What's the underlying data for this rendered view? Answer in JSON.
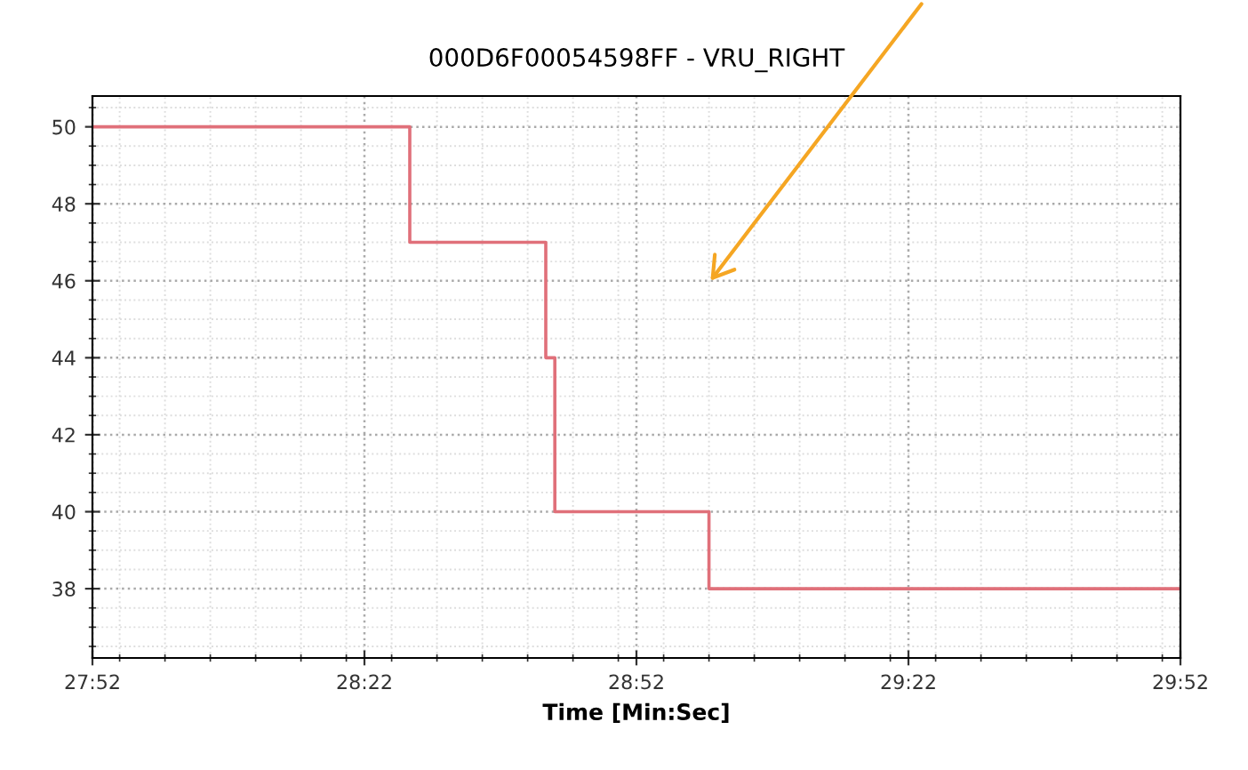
{
  "chart_data": {
    "type": "step",
    "title": "000D6F00054598FF - VRU_RIGHT",
    "xlabel": "Time [Min:Sec]",
    "x": [
      1672,
      1707,
      1722,
      1723,
      1740,
      1792
    ],
    "series": [
      {
        "color": "#e0707a",
        "values": [
          50,
          47,
          44,
          40,
          38,
          38
        ]
      }
    ],
    "xlim": [
      1672,
      1792
    ],
    "xticks": [
      {
        "value": 1672,
        "label": "27:52"
      },
      {
        "value": 1702,
        "label": "28:22"
      },
      {
        "value": 1732,
        "label": "28:52"
      },
      {
        "value": 1762,
        "label": "29:22"
      },
      {
        "value": 1792,
        "label": "29:52"
      }
    ],
    "ylim": [
      36.2,
      50.8
    ],
    "yticks": [
      38,
      40,
      42,
      44,
      46,
      48,
      50
    ],
    "grid": true,
    "legend": false
  }
}
